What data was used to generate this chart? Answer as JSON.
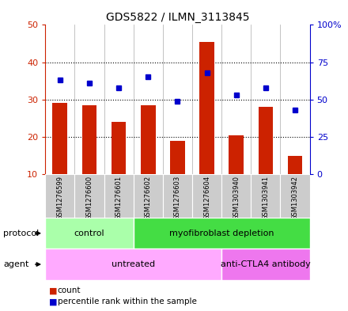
{
  "title": "GDS5822 / ILMN_3113845",
  "samples": [
    "GSM1276599",
    "GSM1276600",
    "GSM1276601",
    "GSM1276602",
    "GSM1276603",
    "GSM1276604",
    "GSM1303940",
    "GSM1303941",
    "GSM1303942"
  ],
  "counts": [
    29,
    28.5,
    24,
    28.5,
    19,
    45.5,
    20.5,
    28,
    15
  ],
  "percentiles": [
    63,
    61,
    58,
    65,
    49,
    68,
    53,
    58,
    43
  ],
  "ylim_left": [
    10,
    50
  ],
  "ylim_right": [
    0,
    100
  ],
  "yticks_left": [
    10,
    20,
    30,
    40,
    50
  ],
  "yticks_right": [
    0,
    25,
    50,
    75,
    100
  ],
  "ytick_labels_right": [
    "0",
    "25",
    "50",
    "75",
    "100%"
  ],
  "bar_color": "#cc2200",
  "dot_color": "#0000cc",
  "bar_bottom": 10,
  "protocol_groups": [
    {
      "label": "control",
      "start": 0,
      "end": 3,
      "color": "#aaffaa"
    },
    {
      "label": "myofibroblast depletion",
      "start": 3,
      "end": 9,
      "color": "#44dd44"
    }
  ],
  "agent_groups": [
    {
      "label": "untreated",
      "start": 0,
      "end": 6,
      "color": "#ffaaff"
    },
    {
      "label": "anti-CTLA4 antibody",
      "start": 6,
      "end": 9,
      "color": "#ee77ee"
    }
  ],
  "legend_count_label": "count",
  "legend_pct_label": "percentile rank within the sample",
  "bg_color": "#cccccc",
  "plot_bg_color": "#ffffff",
  "tick_color_left": "#cc2200",
  "tick_color_right": "#0000cc"
}
